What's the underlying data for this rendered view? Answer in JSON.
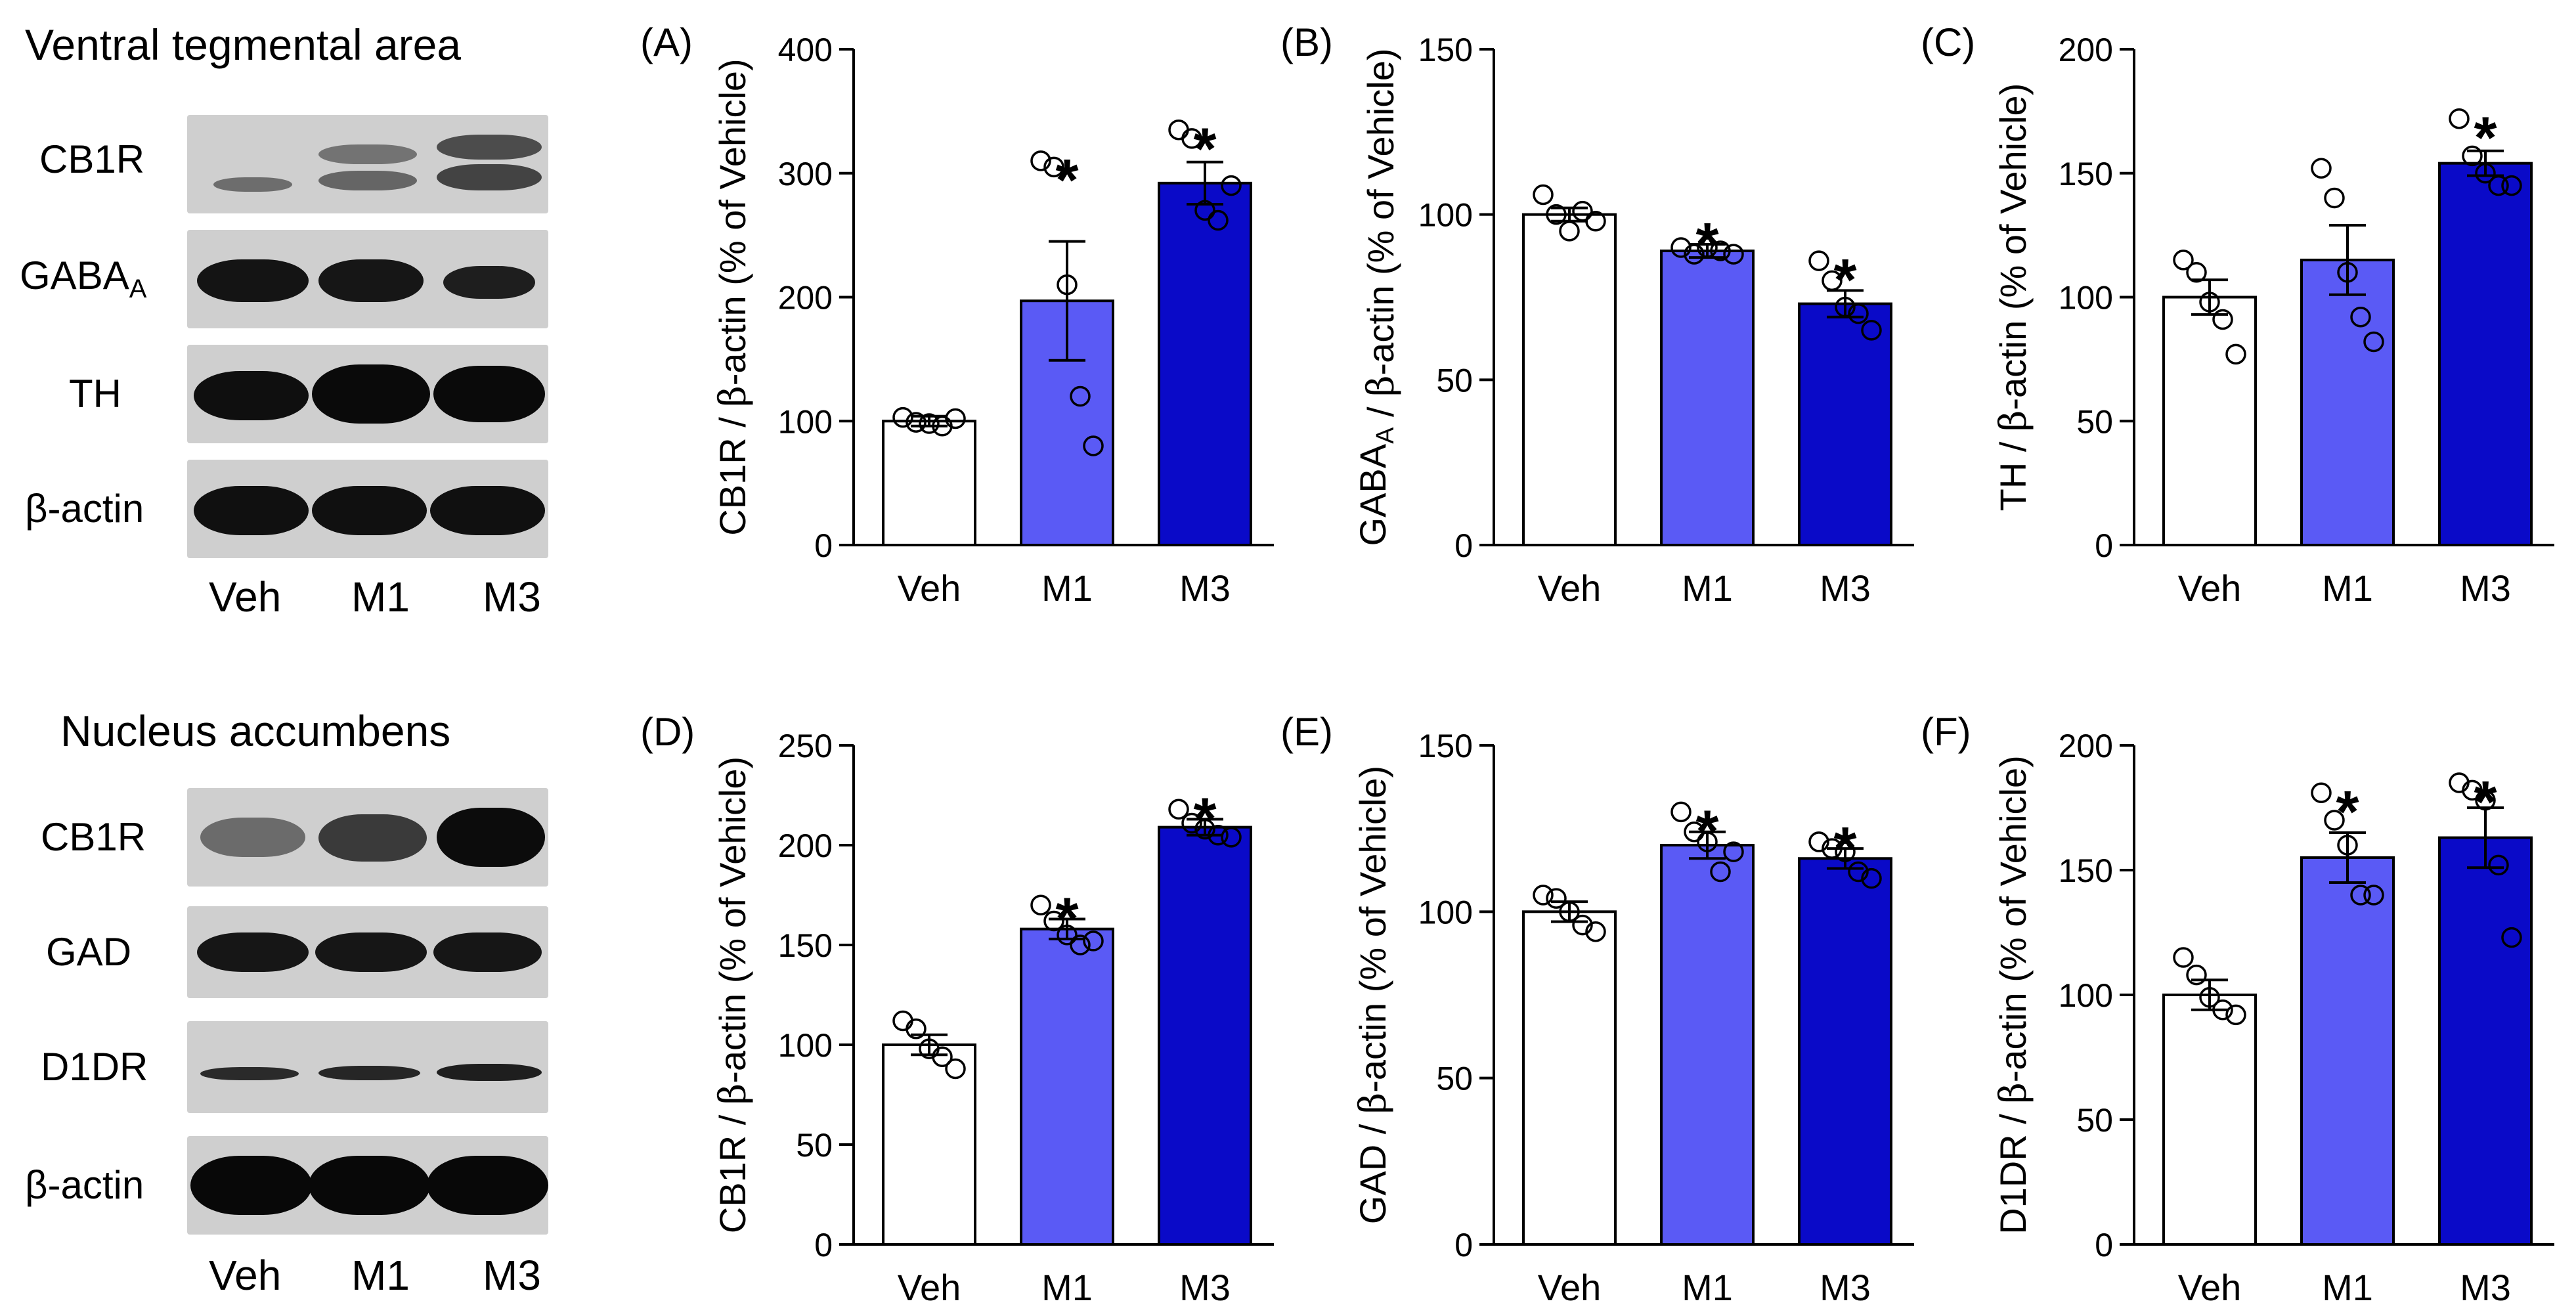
{
  "blots": [
    {
      "title": "Ventral tegmental area",
      "proteins": [
        "CB1R",
        "GABA",
        "TH",
        "β-actin"
      ],
      "gaba_subscript": "A",
      "lanes": [
        "Veh",
        "M1",
        "M3"
      ]
    },
    {
      "title": "Nucleus accumbens",
      "proteins": [
        "CB1R",
        "GAD",
        "D1DR",
        "β-actin"
      ],
      "lanes": [
        "Veh",
        "M1",
        "M3"
      ]
    }
  ],
  "colors": {
    "veh": "#ffffff",
    "m1": "#5a5af5",
    "m3": "#0a0ac8",
    "axis": "#000000"
  },
  "chart_data": [
    {
      "panel": "(A)",
      "type": "bar",
      "ylabel_pre": "CB1R / ",
      "ylabel_beta": "β",
      "ylabel_post": "-actin (% of Vehicle)",
      "ylim": [
        0,
        400
      ],
      "yticks": [
        0,
        100,
        200,
        300,
        400
      ],
      "categories": [
        "Veh",
        "M1",
        "M3"
      ],
      "values": [
        100,
        197,
        292
      ],
      "sem": [
        4,
        48,
        17
      ],
      "points": [
        [
          103,
          99,
          98,
          96,
          102
        ],
        [
          310,
          305,
          210,
          120,
          80
        ],
        [
          335,
          328,
          270,
          262,
          290
        ]
      ],
      "significant": [
        false,
        true,
        true
      ]
    },
    {
      "panel": "(B)",
      "type": "bar",
      "ylabel_pre": "GABA",
      "ylabel_sub": "A",
      "ylabel_mid": " / ",
      "ylabel_beta": "β",
      "ylabel_post": "-actin (% of Vehicle)",
      "ylim": [
        0,
        150
      ],
      "yticks": [
        0,
        50,
        100,
        150
      ],
      "categories": [
        "Veh",
        "M1",
        "M3"
      ],
      "values": [
        100,
        89,
        73
      ],
      "sem": [
        2,
        2,
        4
      ],
      "points": [
        [
          106,
          100,
          95,
          101,
          98
        ],
        [
          90,
          88,
          90,
          89,
          88
        ],
        [
          86,
          80,
          72,
          70,
          65
        ]
      ],
      "significant": [
        false,
        true,
        true
      ]
    },
    {
      "panel": "(C)",
      "type": "bar",
      "ylabel_pre": "TH / ",
      "ylabel_beta": "β",
      "ylabel_post": "-actin (% of Vehicle)",
      "ylim": [
        0,
        200
      ],
      "yticks": [
        0,
        50,
        100,
        150,
        200
      ],
      "categories": [
        "Veh",
        "M1",
        "M3"
      ],
      "values": [
        100,
        115,
        154
      ],
      "sem": [
        7,
        14,
        5
      ],
      "points": [
        [
          115,
          110,
          98,
          91,
          77
        ],
        [
          152,
          140,
          110,
          92,
          82
        ],
        [
          172,
          157,
          150,
          145,
          145
        ]
      ],
      "significant": [
        false,
        false,
        true
      ]
    },
    {
      "panel": "(D)",
      "type": "bar",
      "ylabel_pre": "CB1R / ",
      "ylabel_beta": "β",
      "ylabel_post": "-actin (% of Vehicle)",
      "ylim": [
        0,
        250
      ],
      "yticks": [
        0,
        50,
        100,
        150,
        200,
        250
      ],
      "categories": [
        "Veh",
        "M1",
        "M3"
      ],
      "values": [
        100,
        158,
        209
      ],
      "sem": [
        5,
        5,
        4
      ],
      "points": [
        [
          112,
          108,
          98,
          94,
          88
        ],
        [
          170,
          162,
          155,
          150,
          152
        ],
        [
          218,
          211,
          208,
          205,
          204
        ]
      ],
      "significant": [
        false,
        true,
        true
      ]
    },
    {
      "panel": "(E)",
      "type": "bar",
      "ylabel_pre": "GAD / ",
      "ylabel_beta": "β",
      "ylabel_post": "-actin (% of Vehicle)",
      "ylim": [
        0,
        150
      ],
      "yticks": [
        0,
        50,
        100,
        150
      ],
      "categories": [
        "Veh",
        "M1",
        "M3"
      ],
      "values": [
        100,
        120,
        116
      ],
      "sem": [
        3,
        4,
        3
      ],
      "points": [
        [
          105,
          104,
          100,
          96,
          94
        ],
        [
          130,
          124,
          121,
          112,
          118
        ],
        [
          121,
          119,
          118,
          112,
          110
        ]
      ],
      "significant": [
        false,
        true,
        true
      ]
    },
    {
      "panel": "(F)",
      "type": "bar",
      "ylabel_pre": "D1DR / ",
      "ylabel_beta": "β",
      "ylabel_post": "-actin (% of Vehicle)",
      "ylim": [
        0,
        200
      ],
      "yticks": [
        0,
        50,
        100,
        150,
        200
      ],
      "categories": [
        "Veh",
        "M1",
        "M3"
      ],
      "values": [
        100,
        155,
        163
      ],
      "sem": [
        6,
        10,
        12
      ],
      "points": [
        [
          115,
          108,
          99,
          94,
          92
        ],
        [
          181,
          170,
          160,
          140,
          140
        ],
        [
          185,
          182,
          178,
          152,
          123
        ]
      ],
      "significant": [
        false,
        true,
        true
      ]
    }
  ]
}
